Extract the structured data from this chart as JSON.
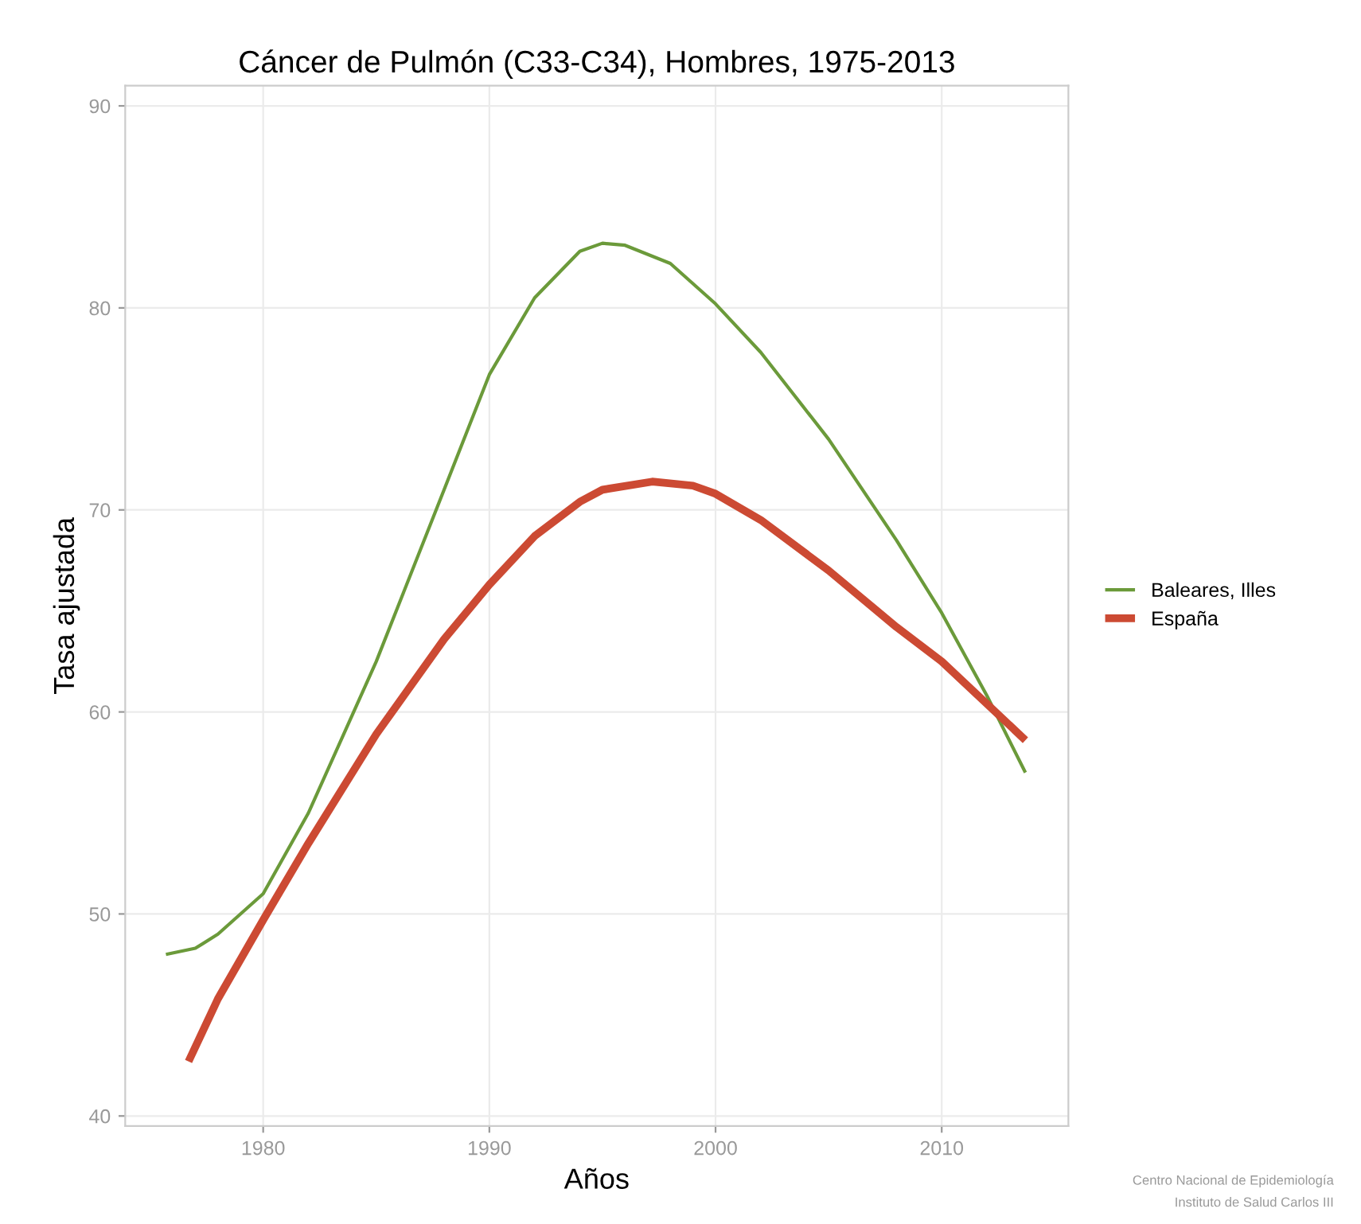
{
  "chart_data": {
    "type": "line",
    "title": "Cáncer de Pulmón (C33-C34), Hombres, 1975-2013",
    "xlabel": "Años",
    "ylabel": "Tasa ajustada",
    "series": [
      {
        "name": "Baleares, Illes",
        "color": "#6b9a3a",
        "x": [
          1975.7,
          1977,
          1978,
          1980,
          1982,
          1985,
          1988,
          1990,
          1992,
          1994,
          1995,
          1996,
          1998,
          2000,
          2002,
          2005,
          2008,
          2010,
          2012,
          2013.7
        ],
        "values": [
          48.0,
          48.3,
          49.0,
          51.0,
          55.0,
          62.5,
          71.0,
          76.7,
          80.5,
          82.8,
          83.2,
          83.1,
          82.2,
          80.2,
          77.8,
          73.5,
          68.5,
          64.9,
          60.8,
          57.0
        ]
      },
      {
        "name": "España",
        "color": "#cc4a33",
        "x": [
          1976.7,
          1978,
          1980,
          1982,
          1985,
          1988,
          1990,
          1992,
          1994,
          1995,
          1997.2,
          1999,
          2000,
          2002,
          2005,
          2008,
          2010,
          2012,
          2013.7
        ],
        "values": [
          42.7,
          45.8,
          49.7,
          53.5,
          58.9,
          63.6,
          66.3,
          68.7,
          70.4,
          71.0,
          71.4,
          71.2,
          70.8,
          69.5,
          67.0,
          64.2,
          62.5,
          60.4,
          58.6
        ]
      }
    ],
    "xlim": [
      1973.9,
      2015.6
    ],
    "ylim": [
      39.5,
      91.0
    ],
    "xticks": [
      1980,
      1990,
      2000,
      2010
    ],
    "yticks": [
      40,
      50,
      60,
      70,
      80,
      90
    ],
    "grid": true,
    "legend": "right",
    "marker": "none",
    "line_style": "solid",
    "annotations": [
      "Centro Nacional de Epidemiología",
      "Instituto de Salud Carlos III"
    ]
  }
}
